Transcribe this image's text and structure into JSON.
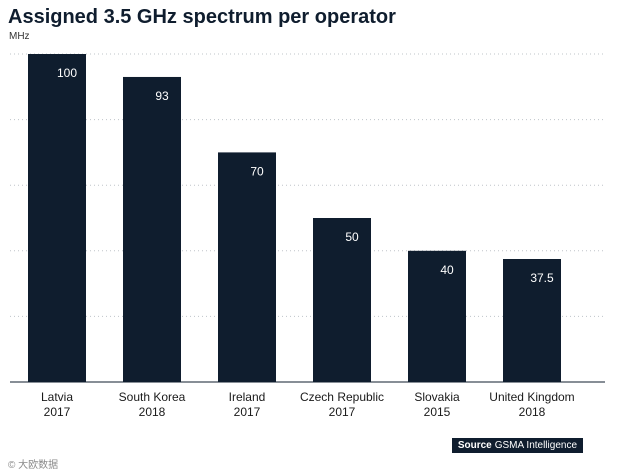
{
  "chart_data": {
    "type": "bar",
    "title": "Assigned 3.5 GHz spectrum per operator",
    "unit_label": "MHz",
    "categories": [
      [
        "Latvia",
        "2017"
      ],
      [
        "South Korea",
        "2018"
      ],
      [
        "Ireland",
        "2017"
      ],
      [
        "Czech Republic",
        "2017"
      ],
      [
        "Slovakia",
        "2015"
      ],
      [
        "United Kingdom",
        "2018"
      ]
    ],
    "values": [
      100,
      93,
      70,
      50,
      40,
      37.5
    ],
    "value_labels": [
      "100",
      "93",
      "70",
      "50",
      "40",
      "37.5"
    ],
    "ylim": [
      0,
      100
    ],
    "grid": true,
    "bar_color": "#0f1d2e"
  },
  "source": {
    "label": "Source",
    "text": "GSMA Intelligence"
  },
  "watermark": "© 大欧数据"
}
